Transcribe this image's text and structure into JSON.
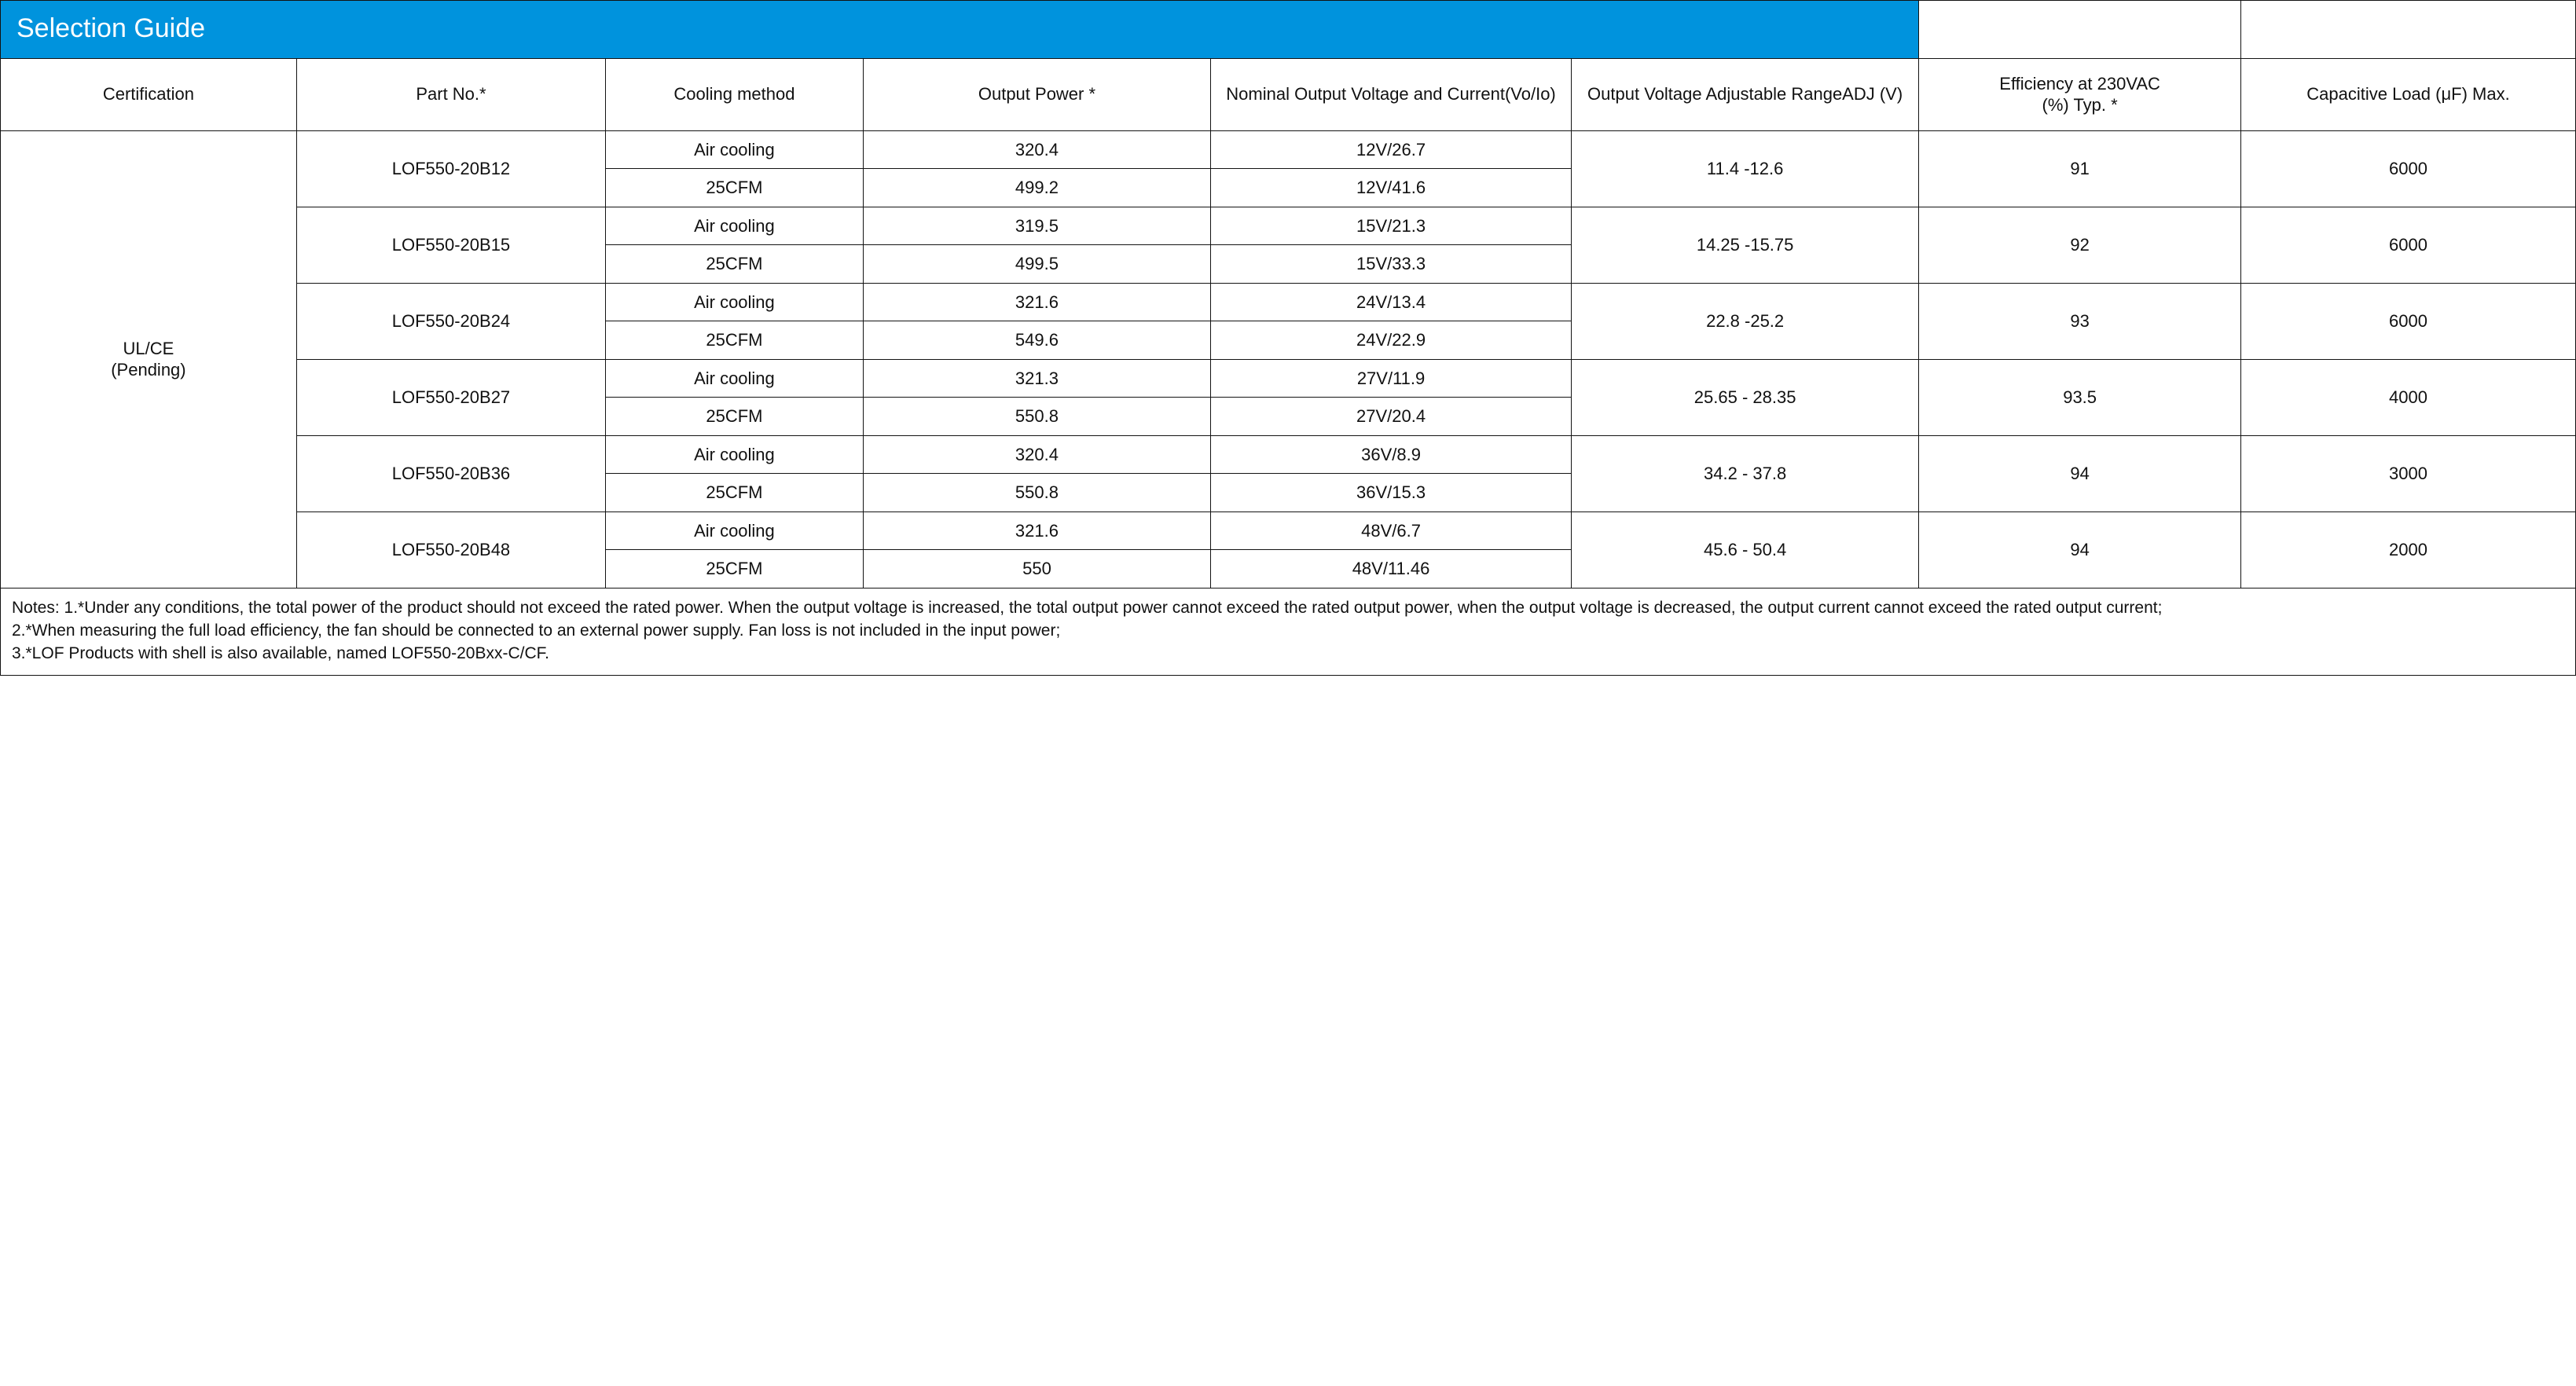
{
  "title": "Selection Guide",
  "title_bg": "#0093dd",
  "title_fg": "#ffffff",
  "border_color": "#131313",
  "columns": [
    "Certification",
    "Part No.*",
    "Cooling method",
    "Output Power *",
    "Nominal Output Voltage and Current(Vo/Io)",
    "Output Voltage Adjustable RangeADJ (V)",
    "Efficiency at 230VAC\n(%) Typ. *",
    "Capacitive Load (μF) Max."
  ],
  "certification": "UL/CE\n(Pending)",
  "parts": [
    {
      "part_no": "LOF550-20B12",
      "rows": [
        {
          "cooling": "Air cooling",
          "power": "320.4",
          "voio": "12V/26.7"
        },
        {
          "cooling": "25CFM",
          "power": "499.2",
          "voio": "12V/41.6"
        }
      ],
      "adj_range": "11.4 -12.6",
      "efficiency": "91",
      "cap_load": "6000"
    },
    {
      "part_no": "LOF550-20B15",
      "rows": [
        {
          "cooling": "Air cooling",
          "power": "319.5",
          "voio": "15V/21.3"
        },
        {
          "cooling": "25CFM",
          "power": "499.5",
          "voio": "15V/33.3"
        }
      ],
      "adj_range": "14.25 -15.75",
      "efficiency": "92",
      "cap_load": "6000"
    },
    {
      "part_no": "LOF550-20B24",
      "rows": [
        {
          "cooling": "Air cooling",
          "power": "321.6",
          "voio": "24V/13.4"
        },
        {
          "cooling": "25CFM",
          "power": "549.6",
          "voio": "24V/22.9"
        }
      ],
      "adj_range": "22.8 -25.2",
      "efficiency": "93",
      "cap_load": "6000"
    },
    {
      "part_no": "LOF550-20B27",
      "rows": [
        {
          "cooling": "Air cooling",
          "power": "321.3",
          "voio": "27V/11.9"
        },
        {
          "cooling": "25CFM",
          "power": "550.8",
          "voio": "27V/20.4"
        }
      ],
      "adj_range": "25.65 - 28.35",
      "efficiency": "93.5",
      "cap_load": "4000"
    },
    {
      "part_no": "LOF550-20B36",
      "rows": [
        {
          "cooling": "Air cooling",
          "power": "320.4",
          "voio": "36V/8.9"
        },
        {
          "cooling": "25CFM",
          "power": "550.8",
          "voio": "36V/15.3"
        }
      ],
      "adj_range": "34.2 - 37.8",
      "efficiency": "94",
      "cap_load": "3000"
    },
    {
      "part_no": "LOF550-20B48",
      "rows": [
        {
          "cooling": "Air cooling",
          "power": "321.6",
          "voio": "48V/6.7"
        },
        {
          "cooling": "25CFM",
          "power": "550",
          "voio": "48V/11.46"
        }
      ],
      "adj_range": "45.6 - 50.4",
      "efficiency": "94",
      "cap_load": "2000"
    }
  ],
  "notes": "Notes: 1.*Under any conditions, the total power of the product should not exceed the rated power. When the output voltage is increased, the total output power cannot exceed the rated output power, when the output voltage is decreased, the output current cannot exceed the rated output current;\n2.*When measuring the full load efficiency, the fan should be connected to an external power supply. Fan loss is not included in the input power;\n3.*LOF Products with shell is also available, named LOF550-20Bxx-C/CF."
}
